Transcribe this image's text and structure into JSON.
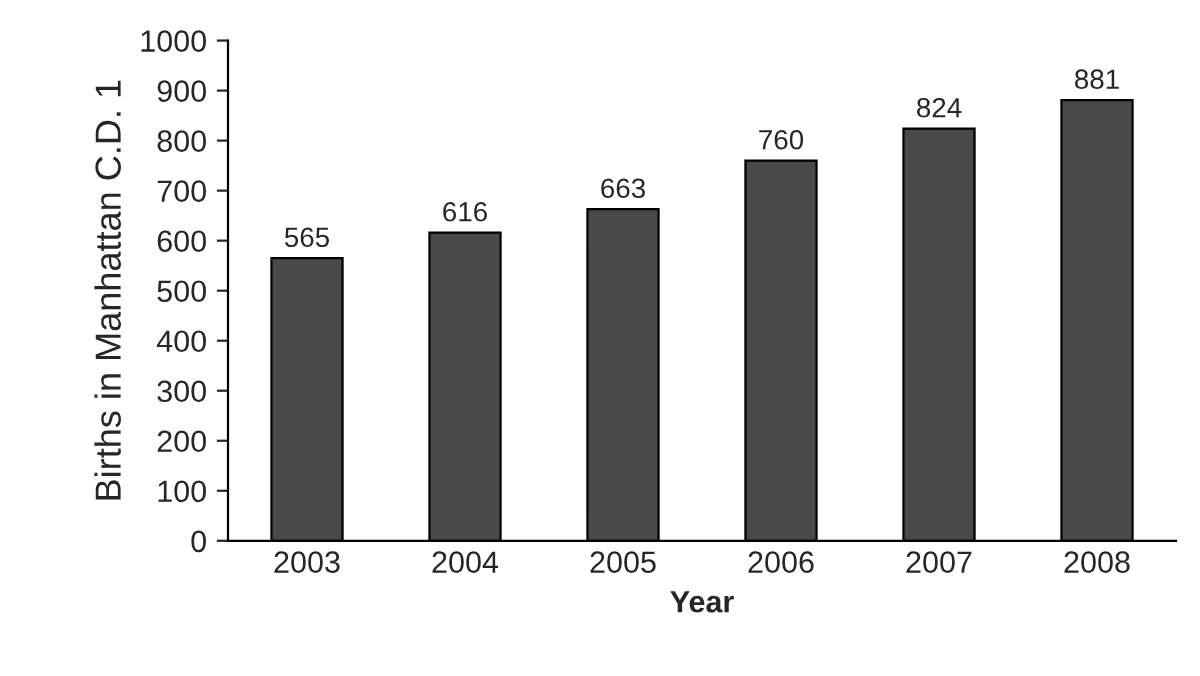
{
  "chart_data": {
    "type": "bar",
    "xlabel": "Year",
    "ylabel": "Births in Manhattan C.D. 1",
    "categories": [
      "2003",
      "2004",
      "2005",
      "2006",
      "2007",
      "2008"
    ],
    "values": [
      565,
      616,
      663,
      760,
      824,
      881
    ],
    "color": "#4a4a4a",
    "ylim": [
      0,
      1000
    ],
    "yticks": [
      0,
      100,
      200,
      300,
      400,
      500,
      600,
      700,
      800,
      900,
      1000
    ],
    "data_labels": true,
    "grid": false,
    "legend": false
  }
}
